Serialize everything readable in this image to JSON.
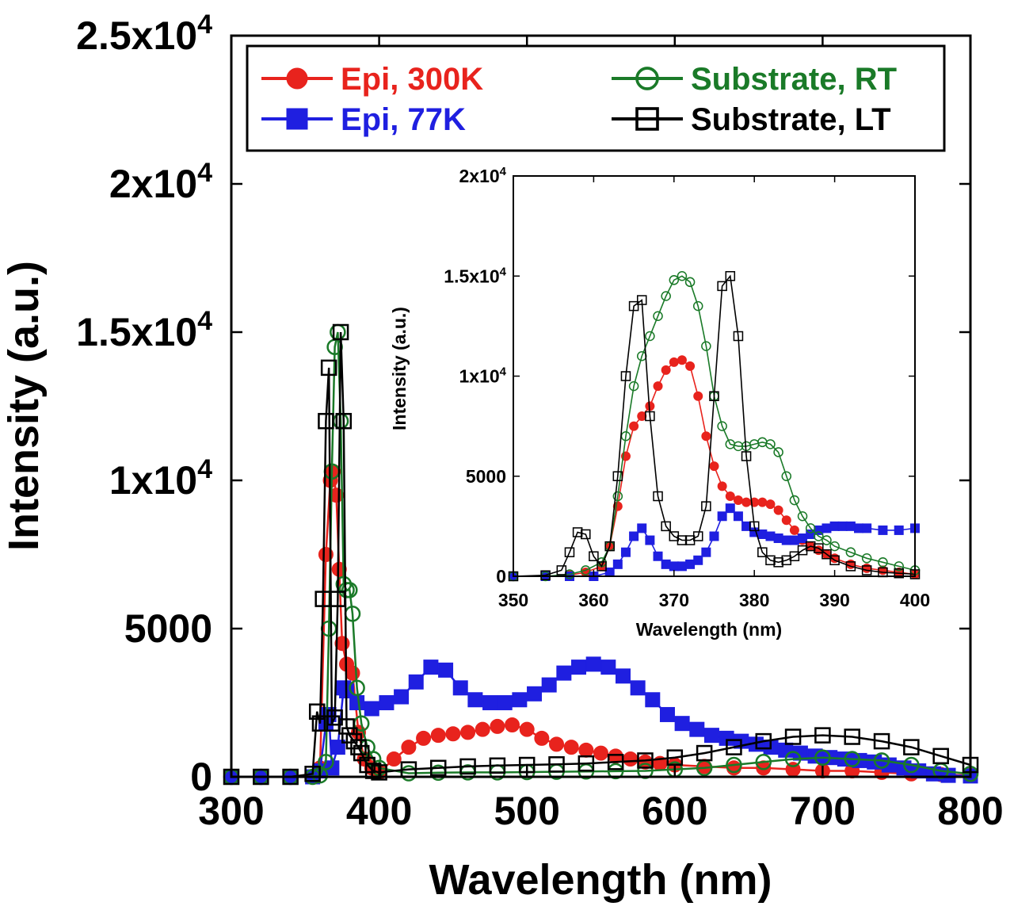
{
  "chart_data": [
    {
      "id": "main",
      "type": "scatter",
      "title": "",
      "xlabel": "Wavelength (nm)",
      "ylabel": "Intensity (a.u.)",
      "xlim": [
        300,
        800
      ],
      "ylim": [
        0,
        25000
      ],
      "xticks": [
        300,
        400,
        500,
        600,
        700,
        800
      ],
      "xtick_labels": [
        "300",
        "400",
        "500",
        "600",
        "700",
        "800"
      ],
      "yticks": [
        0,
        5000,
        10000,
        15000,
        20000,
        25000
      ],
      "ytick_labels": [
        {
          "base": "0",
          "exp": ""
        },
        {
          "base": "5000",
          "exp": ""
        },
        {
          "base": "1x10",
          "exp": "4"
        },
        {
          "base": "1.5x10",
          "exp": "4"
        },
        {
          "base": "2x10",
          "exp": "4"
        },
        {
          "base": "2.5x10",
          "exp": "4"
        }
      ],
      "grid": false,
      "legend": {
        "position": "top",
        "columns": 2
      },
      "series": [
        {
          "name": "Epi, 300K",
          "color": "#e8231d",
          "marker": "circle-filled",
          "x": [
            300,
            320,
            340,
            355,
            360,
            364,
            367,
            369,
            371,
            373,
            375,
            378,
            382,
            386,
            390,
            395,
            400,
            410,
            420,
            430,
            440,
            450,
            460,
            470,
            480,
            490,
            500,
            510,
            520,
            530,
            540,
            550,
            560,
            570,
            580,
            590,
            600,
            620,
            640,
            660,
            680,
            700,
            720,
            740,
            760,
            780,
            800
          ],
          "y": [
            0,
            0,
            0,
            0,
            300,
            7500,
            10000,
            10300,
            9500,
            7000,
            4500,
            3800,
            3500,
            1500,
            600,
            300,
            150,
            600,
            1000,
            1300,
            1400,
            1450,
            1500,
            1600,
            1700,
            1750,
            1600,
            1300,
            1100,
            1000,
            900,
            800,
            700,
            600,
            500,
            450,
            400,
            350,
            300,
            300,
            250,
            200,
            200,
            150,
            100,
            80,
            50
          ]
        },
        {
          "name": "Epi, 77K",
          "color": "#1f1fe0",
          "marker": "square-filled",
          "x": [
            300,
            320,
            340,
            355,
            360,
            364,
            366,
            368,
            372,
            376,
            378,
            385,
            395,
            405,
            415,
            425,
            435,
            445,
            455,
            465,
            475,
            485,
            495,
            505,
            515,
            525,
            535,
            545,
            555,
            565,
            575,
            585,
            595,
            605,
            615,
            625,
            635,
            645,
            655,
            665,
            675,
            685,
            695,
            705,
            715,
            725,
            735,
            745,
            755,
            765,
            775,
            785,
            800
          ],
          "y": [
            0,
            0,
            0,
            0,
            200,
            1800,
            2100,
            300,
            1000,
            3000,
            2900,
            2500,
            2300,
            2500,
            2700,
            3200,
            3700,
            3600,
            3000,
            2600,
            2500,
            2500,
            2600,
            2800,
            3100,
            3500,
            3700,
            3800,
            3700,
            3400,
            3000,
            2600,
            2100,
            1800,
            1600,
            1400,
            1300,
            1200,
            1100,
            1000,
            900,
            800,
            700,
            650,
            600,
            550,
            500,
            400,
            300,
            200,
            100,
            50,
            30
          ]
        },
        {
          "name": "Substrate, RT",
          "color": "#1a7a28",
          "marker": "circle-open",
          "x": [
            300,
            320,
            340,
            355,
            360,
            364,
            366,
            368,
            370,
            372,
            374,
            376,
            378,
            380,
            382,
            385,
            388,
            392,
            396,
            400,
            420,
            440,
            460,
            480,
            500,
            520,
            540,
            560,
            580,
            600,
            620,
            640,
            660,
            680,
            700,
            720,
            740,
            760,
            780,
            800
          ],
          "y": [
            0,
            0,
            0,
            0,
            50,
            500,
            5000,
            10300,
            14500,
            15000,
            12000,
            6500,
            6300,
            6300,
            5500,
            3000,
            1800,
            1000,
            600,
            300,
            120,
            140,
            150,
            150,
            160,
            170,
            180,
            190,
            200,
            250,
            300,
            400,
            500,
            600,
            650,
            600,
            550,
            400,
            200,
            100
          ]
        },
        {
          "name": "Substrate, LT",
          "color": "#000000",
          "marker": "square-open",
          "x": [
            300,
            320,
            340,
            355,
            358,
            360,
            362,
            364,
            366,
            368,
            370,
            372,
            374,
            376,
            378,
            380,
            383,
            386,
            388,
            392,
            396,
            400,
            420,
            440,
            460,
            480,
            500,
            520,
            540,
            560,
            580,
            600,
            620,
            640,
            660,
            680,
            700,
            720,
            740,
            760,
            780,
            800
          ],
          "y": [
            0,
            0,
            0,
            100,
            2200,
            1800,
            6000,
            12000,
            13800,
            1800,
            2000,
            6000,
            15000,
            12000,
            1700,
            1400,
            1200,
            1000,
            800,
            400,
            200,
            150,
            250,
            300,
            350,
            380,
            400,
            420,
            450,
            500,
            550,
            650,
            800,
            1000,
            1200,
            1350,
            1400,
            1350,
            1200,
            1000,
            700,
            400
          ]
        }
      ]
    },
    {
      "id": "inset",
      "type": "scatter",
      "title": "",
      "xlabel": "Wavelength (nm)",
      "ylabel": "Intensity (a.u.)",
      "xlim": [
        350,
        400
      ],
      "ylim": [
        0,
        20000
      ],
      "xticks": [
        350,
        360,
        370,
        380,
        390,
        400
      ],
      "xtick_labels": [
        "350",
        "360",
        "370",
        "380",
        "390",
        "400"
      ],
      "yticks": [
        0,
        5000,
        10000,
        15000,
        20000
      ],
      "ytick_labels": [
        {
          "base": "0",
          "exp": ""
        },
        {
          "base": "5000",
          "exp": ""
        },
        {
          "base": "1x10",
          "exp": "4"
        },
        {
          "base": "1.5x10",
          "exp": "4"
        },
        {
          "base": "2x10",
          "exp": "4"
        }
      ],
      "grid": false,
      "series": [
        {
          "name": "Epi, 300K",
          "color": "#e8231d",
          "marker": "circle-filled",
          "x": [
            350,
            354,
            357,
            359,
            361,
            362,
            363,
            364,
            365,
            366,
            367,
            368,
            369,
            370,
            371,
            372,
            373,
            374,
            375,
            376,
            377,
            378,
            379,
            380,
            381,
            382,
            383,
            384,
            385,
            386,
            387,
            388,
            389,
            390,
            392,
            394,
            396,
            398,
            400
          ],
          "y": [
            0,
            0,
            50,
            200,
            500,
            1500,
            3500,
            6000,
            7500,
            8000,
            8500,
            9500,
            10300,
            10700,
            10800,
            10500,
            9000,
            7000,
            5500,
            4500,
            4000,
            3800,
            3700,
            3700,
            3700,
            3600,
            3300,
            2800,
            2300,
            1800,
            1500,
            1300,
            1100,
            900,
            600,
            400,
            300,
            200,
            100
          ]
        },
        {
          "name": "Epi, 77K",
          "color": "#1f1fe0",
          "marker": "square-filled",
          "x": [
            350,
            354,
            357,
            360,
            362,
            363,
            364,
            365,
            366,
            367,
            368,
            369,
            370,
            371,
            372,
            373,
            374,
            375,
            376,
            377,
            378,
            379,
            380,
            381,
            382,
            383,
            384,
            385,
            386,
            387,
            388,
            389,
            390,
            391,
            392,
            393,
            394,
            396,
            398,
            400
          ],
          "y": [
            0,
            0,
            0,
            0,
            200,
            600,
            1200,
            2000,
            2400,
            1800,
            1000,
            600,
            500,
            500,
            600,
            800,
            1200,
            2000,
            3000,
            3400,
            3000,
            2500,
            2200,
            2100,
            2000,
            1900,
            1800,
            1800,
            1900,
            2100,
            2300,
            2400,
            2500,
            2500,
            2500,
            2400,
            2400,
            2300,
            2300,
            2400
          ]
        },
        {
          "name": "Substrate, RT",
          "color": "#1a7a28",
          "marker": "circle-open",
          "x": [
            350,
            354,
            357,
            359,
            361,
            362,
            363,
            364,
            365,
            366,
            367,
            368,
            369,
            370,
            371,
            372,
            373,
            374,
            375,
            376,
            377,
            378,
            379,
            380,
            381,
            382,
            383,
            384,
            385,
            386,
            387,
            388,
            389,
            390,
            392,
            394,
            396,
            398,
            400
          ],
          "y": [
            0,
            0,
            100,
            300,
            700,
            1500,
            4000,
            7000,
            9500,
            11000,
            12000,
            13000,
            14000,
            14800,
            15000,
            14700,
            13500,
            11500,
            9000,
            7500,
            6600,
            6500,
            6500,
            6600,
            6700,
            6600,
            6200,
            5000,
            3800,
            3000,
            2400,
            2000,
            1800,
            1500,
            1200,
            900,
            700,
            500,
            300
          ]
        },
        {
          "name": "Substrate, LT",
          "color": "#000000",
          "marker": "square-open",
          "x": [
            350,
            354,
            356,
            357,
            358,
            359,
            360,
            361,
            362,
            363,
            364,
            365,
            366,
            367,
            368,
            369,
            370,
            371,
            372,
            373,
            374,
            375,
            376,
            377,
            378,
            379,
            380,
            381,
            382,
            383,
            384,
            385,
            386,
            387,
            388,
            389,
            390,
            392,
            394,
            396,
            398,
            400
          ],
          "y": [
            0,
            50,
            300,
            1200,
            2200,
            2100,
            1000,
            500,
            1500,
            5000,
            10000,
            13500,
            13800,
            8000,
            4000,
            2500,
            2000,
            1800,
            1800,
            2000,
            3500,
            9000,
            14500,
            15000,
            12000,
            6000,
            2500,
            1200,
            800,
            700,
            800,
            1000,
            1300,
            1500,
            1400,
            1100,
            800,
            500,
            300,
            200,
            150,
            100
          ]
        }
      ]
    }
  ]
}
